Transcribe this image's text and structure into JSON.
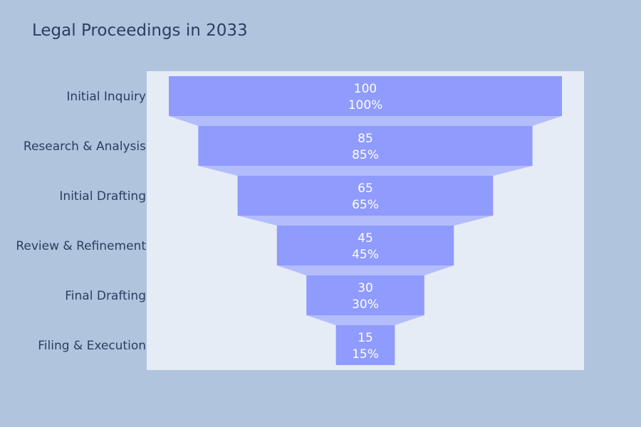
{
  "chart_data": {
    "type": "funnel",
    "title": "Legal Proceedings in 2033",
    "categories": [
      "Initial Inquiry",
      "Research & Analysis",
      "Initial Drafting",
      "Review & Refinement",
      "Final Drafting",
      "Filing & Execution"
    ],
    "values": [
      100,
      85,
      65,
      45,
      30,
      15
    ],
    "percent_labels": [
      "100%",
      "85%",
      "65%",
      "45%",
      "30%",
      "15%"
    ],
    "colors": {
      "page_background": "#b0c4de",
      "plot_background": "#e5ecf6",
      "bar": "#8f9bfd",
      "connector": "#b4bdfb",
      "text": "#2a3f5f",
      "bar_text": "#ffffff"
    }
  }
}
